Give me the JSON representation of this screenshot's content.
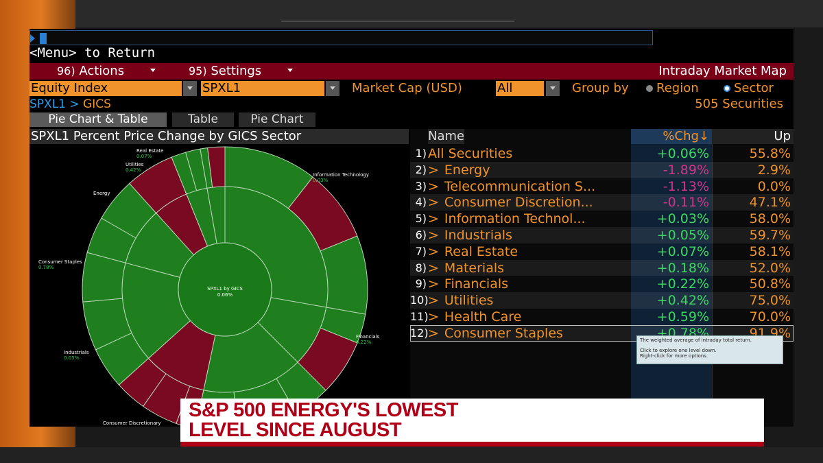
{
  "command_line": {
    "value": ""
  },
  "menu_hint": "<Menu> to Return",
  "toolbar": {
    "actions": {
      "num": "96)",
      "label": "Actions"
    },
    "settings": {
      "num": "95)",
      "label": "Settings"
    },
    "title": "Intraday Market Map"
  },
  "controls": {
    "security_type": "Equity Index",
    "ticker": "SPXL1",
    "market_cap_label": "Market Cap (USD)",
    "market_cap_value": "All",
    "group_by_label": "Group by",
    "group_by_options": [
      {
        "label": "Region",
        "selected": false
      },
      {
        "label": "Sector",
        "selected": true
      }
    ]
  },
  "breadcrumb": {
    "root": "SPXL1",
    "sep": " > ",
    "current": "GICS"
  },
  "securities_count": "505 Securities",
  "tabs": [
    {
      "label": "Pie Chart & Table",
      "active": true
    },
    {
      "label": "Table",
      "active": false
    },
    {
      "label": "Pie Chart",
      "active": false
    }
  ],
  "chart_panel_title": "SPXL1 Percent Price Change by GICS Sector",
  "chart_data": {
    "type": "pie",
    "center_label": "SPXL1 by GICS",
    "center_value": "0.06%",
    "slices": [
      {
        "name": "Information Technology",
        "change": "0.03%"
      },
      {
        "name": "Financials",
        "change": "0.22%"
      },
      {
        "name": "Consumer Discretionary",
        "change": ""
      },
      {
        "name": "Industrials",
        "change": "0.05%"
      },
      {
        "name": "Consumer Staples",
        "change": "0.78%"
      },
      {
        "name": "Energy",
        "change": ""
      },
      {
        "name": "Utilities",
        "change": "0.42%"
      },
      {
        "name": "Real Estate",
        "change": "0.07%"
      }
    ]
  },
  "table": {
    "headers": {
      "name": "Name",
      "chg": "%Chg↓",
      "up": "Up"
    },
    "rows": [
      {
        "idx": "1)",
        "name": "All Securities",
        "chg": "+0.06%",
        "up": "55.8%",
        "expand": false
      },
      {
        "idx": "2)",
        "name": "Energy",
        "chg": "-1.89%",
        "up": "2.9%",
        "expand": true
      },
      {
        "idx": "3)",
        "name": "Telecommunication S...",
        "chg": "-1.13%",
        "up": "0.0%",
        "expand": true
      },
      {
        "idx": "4)",
        "name": "Consumer Discretion...",
        "chg": "-0.11%",
        "up": "47.1%",
        "expand": true
      },
      {
        "idx": "5)",
        "name": "Information Technol...",
        "chg": "+0.03%",
        "up": "58.0%",
        "expand": true
      },
      {
        "idx": "6)",
        "name": "Industrials",
        "chg": "+0.05%",
        "up": "59.7%",
        "expand": true
      },
      {
        "idx": "7)",
        "name": "Real Estate",
        "chg": "+0.07%",
        "up": "58.1%",
        "expand": true
      },
      {
        "idx": "8)",
        "name": "Materials",
        "chg": "+0.18%",
        "up": "52.0%",
        "expand": true
      },
      {
        "idx": "9)",
        "name": "Financials",
        "chg": "+0.22%",
        "up": "50.8%",
        "expand": true
      },
      {
        "idx": "10)",
        "name": "Utilities",
        "chg": "+0.42%",
        "up": "75.0%",
        "expand": true
      },
      {
        "idx": "11)",
        "name": "Health Care",
        "chg": "+0.59%",
        "up": "70.0%",
        "expand": true
      },
      {
        "idx": "12)",
        "name": "Consumer Staples",
        "chg": "+0.78%",
        "up": "91.9%",
        "expand": true
      }
    ]
  },
  "tooltip": {
    "line1": "The weighted average of intraday total return.",
    "line2": "Click to explore one level down.",
    "line3": "Right-click for more options."
  },
  "lower_third": {
    "line1": "S&P 500 ENERGY'S LOWEST",
    "line2": "LEVEL SINCE AUGUST"
  },
  "colors": {
    "accent": "#f0932b",
    "header_red": "#7a0018",
    "positive": "#3cd860",
    "negative": "#d0358a",
    "banner_red": "#b00018"
  }
}
